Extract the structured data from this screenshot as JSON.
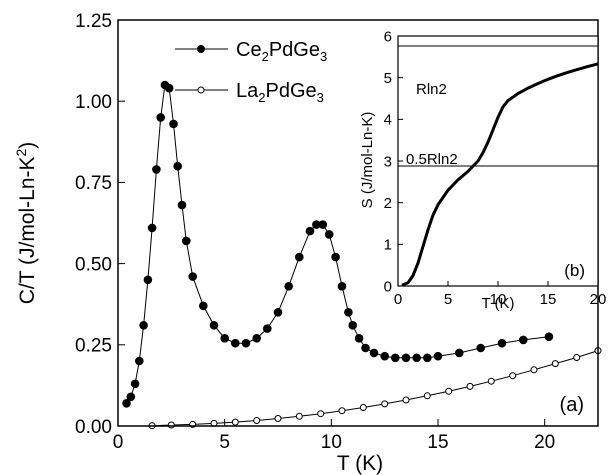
{
  "chart_data": [
    {
      "type": "scatter",
      "panel_label": "(a)",
      "xlabel": "T (K)",
      "ylabel_base": "C/T (J/mol-Ln-K",
      "ylabel_sup": "2",
      "ylabel_end": ")",
      "xlim": [
        0,
        22.5
      ],
      "ylim": [
        0,
        1.25
      ],
      "xticks": [
        "0",
        "5",
        "10",
        "15",
        "20"
      ],
      "yticks": [
        "0.00",
        "0.25",
        "0.50",
        "0.75",
        "1.00",
        "1.25"
      ],
      "legend": [
        {
          "prefix": "Ce",
          "sub1": "2",
          "mid": "PdGe",
          "sub2": "3",
          "marker": "filled"
        },
        {
          "prefix": "La",
          "sub1": "2",
          "mid": "PdGe",
          "sub2": "3",
          "marker": "open"
        }
      ],
      "series": [
        {
          "marker": "filled",
          "x": [
            0.4,
            0.6,
            0.8,
            1.0,
            1.2,
            1.4,
            1.6,
            1.8,
            2.0,
            2.2,
            2.4,
            2.6,
            2.8,
            3.0,
            3.2,
            3.5,
            4.0,
            4.5,
            5.0,
            5.5,
            6.0,
            6.5,
            7.0,
            7.5,
            8.0,
            8.5,
            9.0,
            9.3,
            9.6,
            9.9,
            10.2,
            10.5,
            10.8,
            11.0,
            11.3,
            11.6,
            12.0,
            12.5,
            13.0,
            13.5,
            14.0,
            14.5,
            15.0,
            16.0,
            17.0,
            18.0,
            19.0,
            20.2
          ],
          "y": [
            0.07,
            0.09,
            0.13,
            0.2,
            0.31,
            0.45,
            0.61,
            0.79,
            0.95,
            1.05,
            1.04,
            0.93,
            0.8,
            0.68,
            0.57,
            0.46,
            0.37,
            0.31,
            0.27,
            0.255,
            0.255,
            0.27,
            0.3,
            0.35,
            0.43,
            0.52,
            0.6,
            0.62,
            0.62,
            0.59,
            0.52,
            0.43,
            0.35,
            0.31,
            0.27,
            0.24,
            0.225,
            0.215,
            0.21,
            0.21,
            0.21,
            0.21,
            0.215,
            0.225,
            0.24,
            0.255,
            0.265,
            0.275
          ]
        },
        {
          "marker": "open",
          "x": [
            1.6,
            2.5,
            3.5,
            4.5,
            5.5,
            6.5,
            7.5,
            8.5,
            9.5,
            10.5,
            11.5,
            12.5,
            13.5,
            14.5,
            15.5,
            16.5,
            17.5,
            18.5,
            19.5,
            20.5,
            21.5,
            22.5
          ],
          "y": [
            0.001,
            0.003,
            0.005,
            0.008,
            0.012,
            0.017,
            0.023,
            0.03,
            0.038,
            0.047,
            0.057,
            0.068,
            0.08,
            0.093,
            0.107,
            0.122,
            0.138,
            0.155,
            0.173,
            0.192,
            0.211,
            0.232
          ]
        }
      ]
    },
    {
      "type": "line",
      "panel_label": "(b)",
      "xlabel": "T (K)",
      "ylabel": "S (J/mol-Ln-K)",
      "xlim": [
        0,
        20
      ],
      "ylim": [
        0,
        6
      ],
      "xticks": [
        "0",
        "5",
        "10",
        "15",
        "20"
      ],
      "yticks": [
        "0",
        "1",
        "2",
        "3",
        "4",
        "5",
        "6"
      ],
      "reference_lines": [
        {
          "label": "Rln2",
          "y": 5.76
        },
        {
          "label": "0.5Rln2",
          "y": 2.88
        }
      ],
      "series": [
        {
          "x": [
            0.4,
            1.0,
            1.5,
            2.0,
            2.5,
            3.0,
            3.5,
            4.0,
            5.0,
            6.0,
            7.0,
            8.0,
            8.5,
            9.0,
            9.5,
            10.0,
            10.5,
            11.0,
            12.0,
            13.0,
            14.0,
            15.0,
            16.0,
            17.0,
            18.0,
            19.0,
            20.0
          ],
          "y": [
            0.02,
            0.08,
            0.25,
            0.55,
            0.95,
            1.35,
            1.7,
            1.95,
            2.3,
            2.55,
            2.75,
            3.0,
            3.2,
            3.45,
            3.75,
            4.05,
            4.3,
            4.45,
            4.62,
            4.75,
            4.86,
            4.96,
            5.05,
            5.13,
            5.2,
            5.27,
            5.33
          ]
        }
      ]
    }
  ]
}
